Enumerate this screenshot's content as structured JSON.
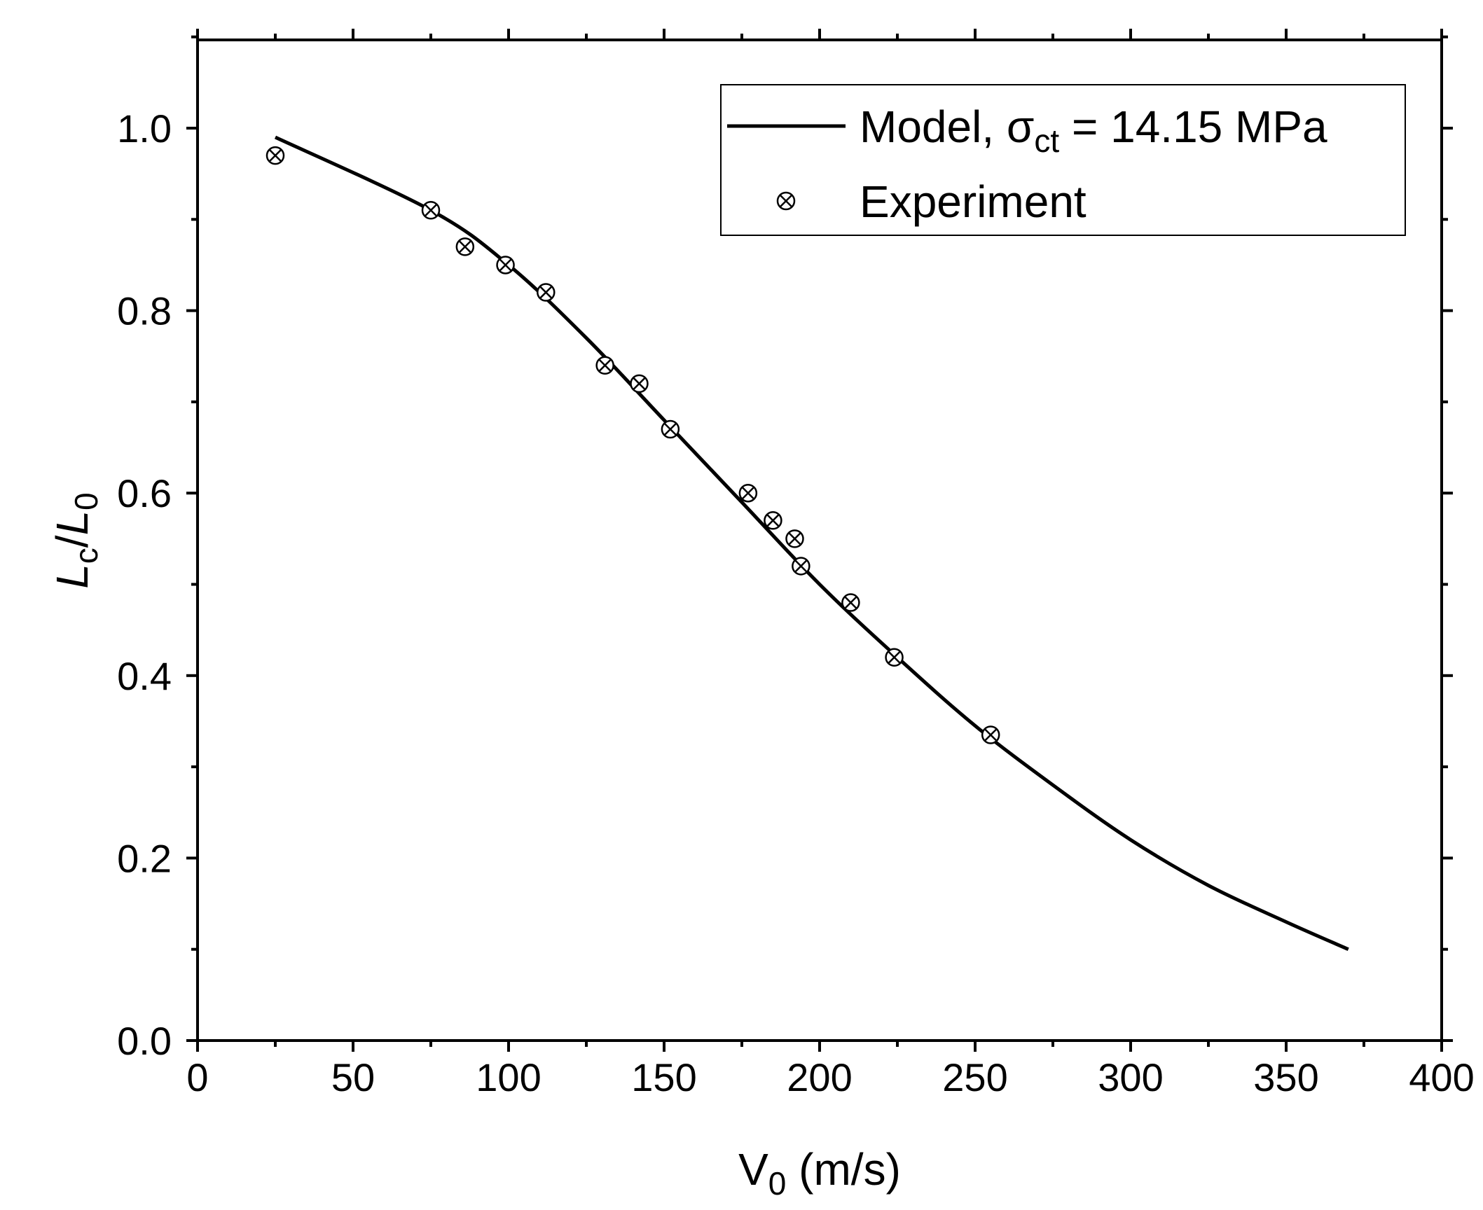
{
  "chart_data": {
    "type": "scatter",
    "title": "",
    "xlabel": {
      "base": "V",
      "sub": "0",
      "rest": " (m/s)"
    },
    "ylabel": {
      "l1": "L",
      "s1": "c",
      "slash": "/",
      "l2": "L",
      "s2": "0"
    },
    "xlim": [
      0,
      400
    ],
    "ylim": [
      0,
      1.1
    ],
    "xticks": [
      0,
      50,
      100,
      150,
      200,
      250,
      300,
      350,
      400
    ],
    "xtick_labels": [
      "0",
      "50",
      "100",
      "150",
      "200",
      "250",
      "300",
      "350",
      "400"
    ],
    "yticks": [
      0.0,
      0.2,
      0.4,
      0.6,
      0.8,
      1.0
    ],
    "ytick_labels": [
      "0.0",
      "0.2",
      "0.4",
      "0.6",
      "0.8",
      "1.0"
    ],
    "grid": false,
    "legend_position": "top-right",
    "series": [
      {
        "name": "Model",
        "kind": "line",
        "legend": {
          "prefix": "Model, ",
          "symbol": "σ",
          "sub": "ct",
          "suffix": " = 14.15 MPa"
        },
        "x": [
          25,
          75,
          100,
          125,
          150,
          175,
          200,
          225,
          250,
          275,
          300,
          325,
          350,
          370
        ],
        "y": [
          0.99,
          0.91,
          0.85,
          0.77,
          0.68,
          0.59,
          0.5,
          0.42,
          0.345,
          0.28,
          0.22,
          0.17,
          0.13,
          0.1
        ]
      },
      {
        "name": "Experiment",
        "kind": "scatter",
        "legend": {
          "label": "Experiment"
        },
        "x": [
          25,
          75,
          86,
          99,
          112,
          131,
          142,
          152,
          177,
          185,
          192,
          194,
          210,
          224,
          255
        ],
        "y": [
          0.97,
          0.91,
          0.87,
          0.85,
          0.82,
          0.74,
          0.72,
          0.67,
          0.6,
          0.57,
          0.55,
          0.52,
          0.48,
          0.42,
          0.335
        ]
      }
    ]
  }
}
